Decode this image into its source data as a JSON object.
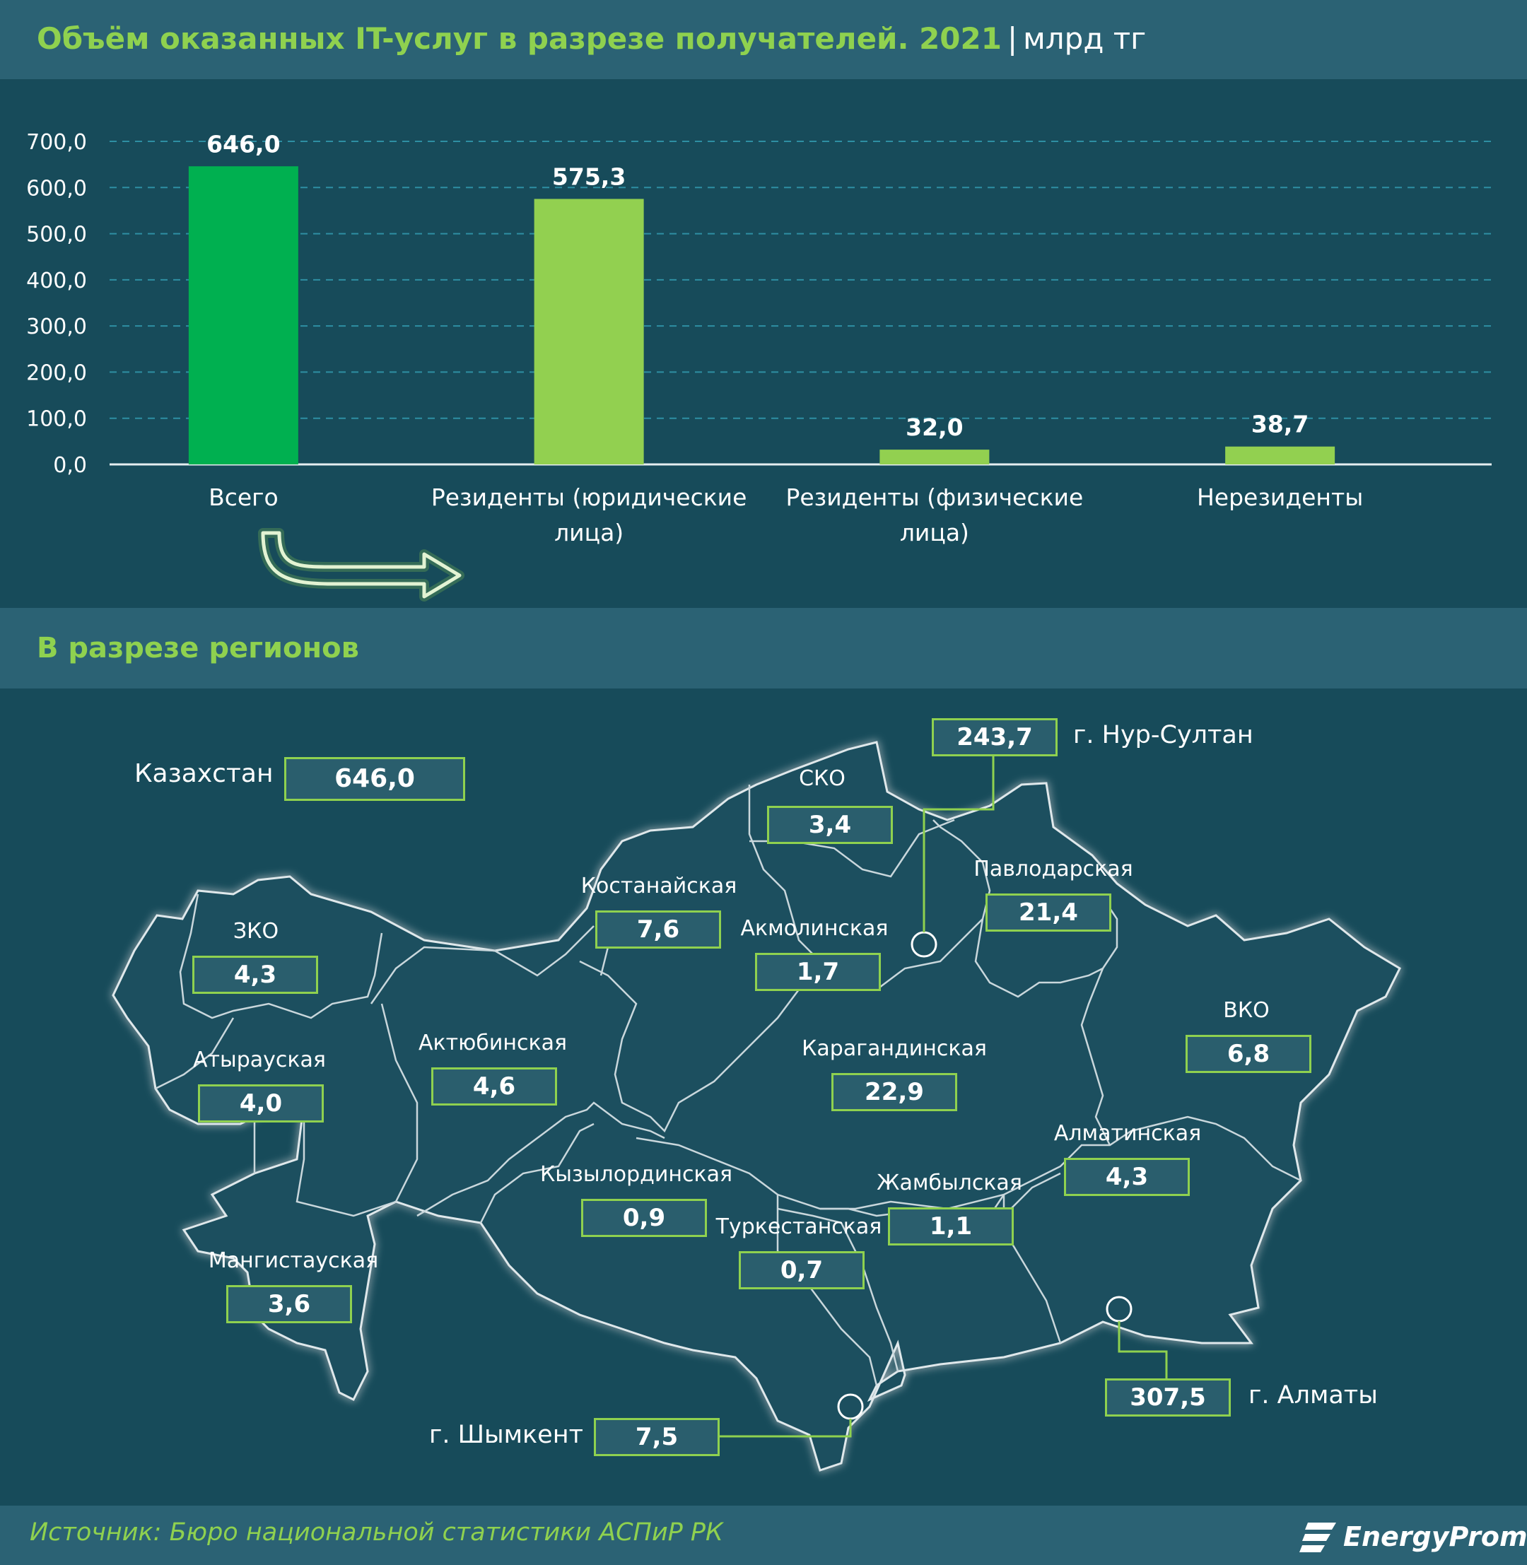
{
  "header": {
    "title": "Объём оказанных IT-услуг в разрезе получателей. 2021",
    "separator": "|",
    "unit": "млрд тг"
  },
  "chart_data": {
    "type": "bar",
    "categories": [
      "Всего",
      "Резиденты (юридические лица)",
      "Резиденты (физические лица)",
      "Нерезиденты"
    ],
    "category_lines": [
      [
        "Всего"
      ],
      [
        "Резиденты (юридические",
        "лица)"
      ],
      [
        "Резиденты (физические",
        "лица)"
      ],
      [
        "Нерезиденты"
      ]
    ],
    "values": [
      646.0,
      575.3,
      32.0,
      38.7
    ],
    "value_labels": [
      "646,0",
      "575,3",
      "32,0",
      "38,7"
    ],
    "ylim": [
      0,
      700
    ],
    "yticks": [
      0,
      100,
      200,
      300,
      400,
      500,
      600,
      700
    ],
    "ytick_labels": [
      "0,0",
      "100,0",
      "200,0",
      "300,0",
      "400,0",
      "500,0",
      "600,0",
      "700,0"
    ],
    "grid": true,
    "colors": [
      "#00b050",
      "#92d050",
      "#92d050",
      "#92d050"
    ]
  },
  "regions_section": {
    "title": "В разрезе регионов",
    "total": {
      "label": "Казахстан",
      "value": "646,0"
    },
    "regions": [
      {
        "name": "ЗКО",
        "value": "4,3"
      },
      {
        "name": "Атырауская",
        "value": "4,0"
      },
      {
        "name": "Мангистауская",
        "value": "3,6"
      },
      {
        "name": "Актюбинская",
        "value": "4,6"
      },
      {
        "name": "Костанайская",
        "value": "7,6"
      },
      {
        "name": "СКО",
        "value": "3,4"
      },
      {
        "name": "Акмолинская",
        "value": "1,7"
      },
      {
        "name": "Павлодарская",
        "value": "21,4"
      },
      {
        "name": "ВКО",
        "value": "6,8"
      },
      {
        "name": "Карагандинская",
        "value": "22,9"
      },
      {
        "name": "Кызылординская",
        "value": "0,9"
      },
      {
        "name": "Туркестанская",
        "value": "0,7"
      },
      {
        "name": "Жамбылская",
        "value": "1,1"
      },
      {
        "name": "Алматинская",
        "value": "4,3"
      }
    ],
    "cities": [
      {
        "name": "г. Нур-Султан",
        "value": "243,7"
      },
      {
        "name": "г. Алматы",
        "value": "307,5"
      },
      {
        "name": "г. Шымкент",
        "value": "7,5"
      }
    ]
  },
  "footer": {
    "source": "Источник: Бюро национальной статистики АСПиР РК",
    "logo_text": "EnergyProm"
  },
  "colors": {
    "background": "#174b5a",
    "band": "#2b6274",
    "accent": "#8fd14f",
    "bar_total": "#00b050",
    "bar_other": "#92d050",
    "map_fill": "#1c4f5f",
    "map_stroke": "#c9d7dc"
  }
}
